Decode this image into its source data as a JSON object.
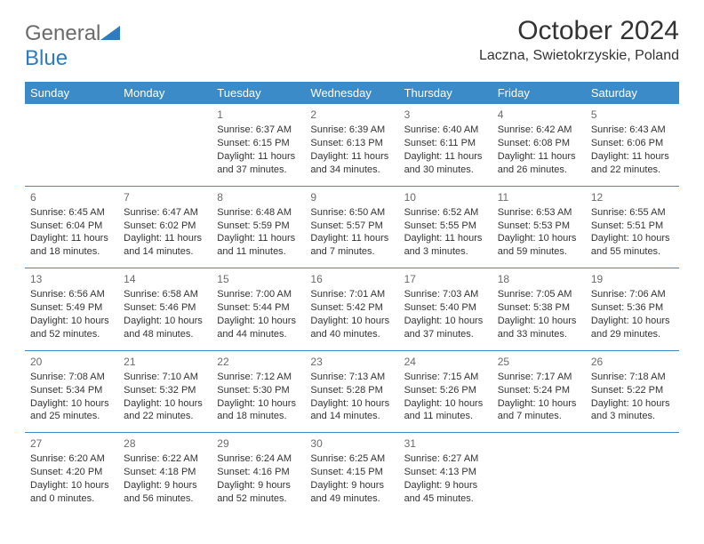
{
  "logo": {
    "word1": "General",
    "word2": "Blue"
  },
  "title": "October 2024",
  "location": "Laczna, Swietokrzyskie, Poland",
  "colors": {
    "header_bg": "#3b8bc9",
    "header_text": "#ffffff",
    "border": "#3b8bc9",
    "text": "#333333",
    "daynum": "#6b6b6b",
    "logo_gray": "#6b6b6b",
    "logo_blue": "#2f7bbf",
    "background": "#ffffff"
  },
  "typography": {
    "title_fontsize": 30,
    "location_fontsize": 16,
    "header_fontsize": 13,
    "cell_fontsize": 11,
    "daynum_fontsize": 12,
    "logo_fontsize": 24
  },
  "day_headers": [
    "Sunday",
    "Monday",
    "Tuesday",
    "Wednesday",
    "Thursday",
    "Friday",
    "Saturday"
  ],
  "weeks": [
    [
      {
        "n": "",
        "sr": "",
        "ss": "",
        "d1": "",
        "d2": ""
      },
      {
        "n": "",
        "sr": "",
        "ss": "",
        "d1": "",
        "d2": ""
      },
      {
        "n": "1",
        "sr": "Sunrise: 6:37 AM",
        "ss": "Sunset: 6:15 PM",
        "d1": "Daylight: 11 hours",
        "d2": "and 37 minutes."
      },
      {
        "n": "2",
        "sr": "Sunrise: 6:39 AM",
        "ss": "Sunset: 6:13 PM",
        "d1": "Daylight: 11 hours",
        "d2": "and 34 minutes."
      },
      {
        "n": "3",
        "sr": "Sunrise: 6:40 AM",
        "ss": "Sunset: 6:11 PM",
        "d1": "Daylight: 11 hours",
        "d2": "and 30 minutes."
      },
      {
        "n": "4",
        "sr": "Sunrise: 6:42 AM",
        "ss": "Sunset: 6:08 PM",
        "d1": "Daylight: 11 hours",
        "d2": "and 26 minutes."
      },
      {
        "n": "5",
        "sr": "Sunrise: 6:43 AM",
        "ss": "Sunset: 6:06 PM",
        "d1": "Daylight: 11 hours",
        "d2": "and 22 minutes."
      }
    ],
    [
      {
        "n": "6",
        "sr": "Sunrise: 6:45 AM",
        "ss": "Sunset: 6:04 PM",
        "d1": "Daylight: 11 hours",
        "d2": "and 18 minutes."
      },
      {
        "n": "7",
        "sr": "Sunrise: 6:47 AM",
        "ss": "Sunset: 6:02 PM",
        "d1": "Daylight: 11 hours",
        "d2": "and 14 minutes."
      },
      {
        "n": "8",
        "sr": "Sunrise: 6:48 AM",
        "ss": "Sunset: 5:59 PM",
        "d1": "Daylight: 11 hours",
        "d2": "and 11 minutes."
      },
      {
        "n": "9",
        "sr": "Sunrise: 6:50 AM",
        "ss": "Sunset: 5:57 PM",
        "d1": "Daylight: 11 hours",
        "d2": "and 7 minutes."
      },
      {
        "n": "10",
        "sr": "Sunrise: 6:52 AM",
        "ss": "Sunset: 5:55 PM",
        "d1": "Daylight: 11 hours",
        "d2": "and 3 minutes."
      },
      {
        "n": "11",
        "sr": "Sunrise: 6:53 AM",
        "ss": "Sunset: 5:53 PM",
        "d1": "Daylight: 10 hours",
        "d2": "and 59 minutes."
      },
      {
        "n": "12",
        "sr": "Sunrise: 6:55 AM",
        "ss": "Sunset: 5:51 PM",
        "d1": "Daylight: 10 hours",
        "d2": "and 55 minutes."
      }
    ],
    [
      {
        "n": "13",
        "sr": "Sunrise: 6:56 AM",
        "ss": "Sunset: 5:49 PM",
        "d1": "Daylight: 10 hours",
        "d2": "and 52 minutes."
      },
      {
        "n": "14",
        "sr": "Sunrise: 6:58 AM",
        "ss": "Sunset: 5:46 PM",
        "d1": "Daylight: 10 hours",
        "d2": "and 48 minutes."
      },
      {
        "n": "15",
        "sr": "Sunrise: 7:00 AM",
        "ss": "Sunset: 5:44 PM",
        "d1": "Daylight: 10 hours",
        "d2": "and 44 minutes."
      },
      {
        "n": "16",
        "sr": "Sunrise: 7:01 AM",
        "ss": "Sunset: 5:42 PM",
        "d1": "Daylight: 10 hours",
        "d2": "and 40 minutes."
      },
      {
        "n": "17",
        "sr": "Sunrise: 7:03 AM",
        "ss": "Sunset: 5:40 PM",
        "d1": "Daylight: 10 hours",
        "d2": "and 37 minutes."
      },
      {
        "n": "18",
        "sr": "Sunrise: 7:05 AM",
        "ss": "Sunset: 5:38 PM",
        "d1": "Daylight: 10 hours",
        "d2": "and 33 minutes."
      },
      {
        "n": "19",
        "sr": "Sunrise: 7:06 AM",
        "ss": "Sunset: 5:36 PM",
        "d1": "Daylight: 10 hours",
        "d2": "and 29 minutes."
      }
    ],
    [
      {
        "n": "20",
        "sr": "Sunrise: 7:08 AM",
        "ss": "Sunset: 5:34 PM",
        "d1": "Daylight: 10 hours",
        "d2": "and 25 minutes."
      },
      {
        "n": "21",
        "sr": "Sunrise: 7:10 AM",
        "ss": "Sunset: 5:32 PM",
        "d1": "Daylight: 10 hours",
        "d2": "and 22 minutes."
      },
      {
        "n": "22",
        "sr": "Sunrise: 7:12 AM",
        "ss": "Sunset: 5:30 PM",
        "d1": "Daylight: 10 hours",
        "d2": "and 18 minutes."
      },
      {
        "n": "23",
        "sr": "Sunrise: 7:13 AM",
        "ss": "Sunset: 5:28 PM",
        "d1": "Daylight: 10 hours",
        "d2": "and 14 minutes."
      },
      {
        "n": "24",
        "sr": "Sunrise: 7:15 AM",
        "ss": "Sunset: 5:26 PM",
        "d1": "Daylight: 10 hours",
        "d2": "and 11 minutes."
      },
      {
        "n": "25",
        "sr": "Sunrise: 7:17 AM",
        "ss": "Sunset: 5:24 PM",
        "d1": "Daylight: 10 hours",
        "d2": "and 7 minutes."
      },
      {
        "n": "26",
        "sr": "Sunrise: 7:18 AM",
        "ss": "Sunset: 5:22 PM",
        "d1": "Daylight: 10 hours",
        "d2": "and 3 minutes."
      }
    ],
    [
      {
        "n": "27",
        "sr": "Sunrise: 6:20 AM",
        "ss": "Sunset: 4:20 PM",
        "d1": "Daylight: 10 hours",
        "d2": "and 0 minutes."
      },
      {
        "n": "28",
        "sr": "Sunrise: 6:22 AM",
        "ss": "Sunset: 4:18 PM",
        "d1": "Daylight: 9 hours",
        "d2": "and 56 minutes."
      },
      {
        "n": "29",
        "sr": "Sunrise: 6:24 AM",
        "ss": "Sunset: 4:16 PM",
        "d1": "Daylight: 9 hours",
        "d2": "and 52 minutes."
      },
      {
        "n": "30",
        "sr": "Sunrise: 6:25 AM",
        "ss": "Sunset: 4:15 PM",
        "d1": "Daylight: 9 hours",
        "d2": "and 49 minutes."
      },
      {
        "n": "31",
        "sr": "Sunrise: 6:27 AM",
        "ss": "Sunset: 4:13 PM",
        "d1": "Daylight: 9 hours",
        "d2": "and 45 minutes."
      },
      {
        "n": "",
        "sr": "",
        "ss": "",
        "d1": "",
        "d2": ""
      },
      {
        "n": "",
        "sr": "",
        "ss": "",
        "d1": "",
        "d2": ""
      }
    ]
  ]
}
